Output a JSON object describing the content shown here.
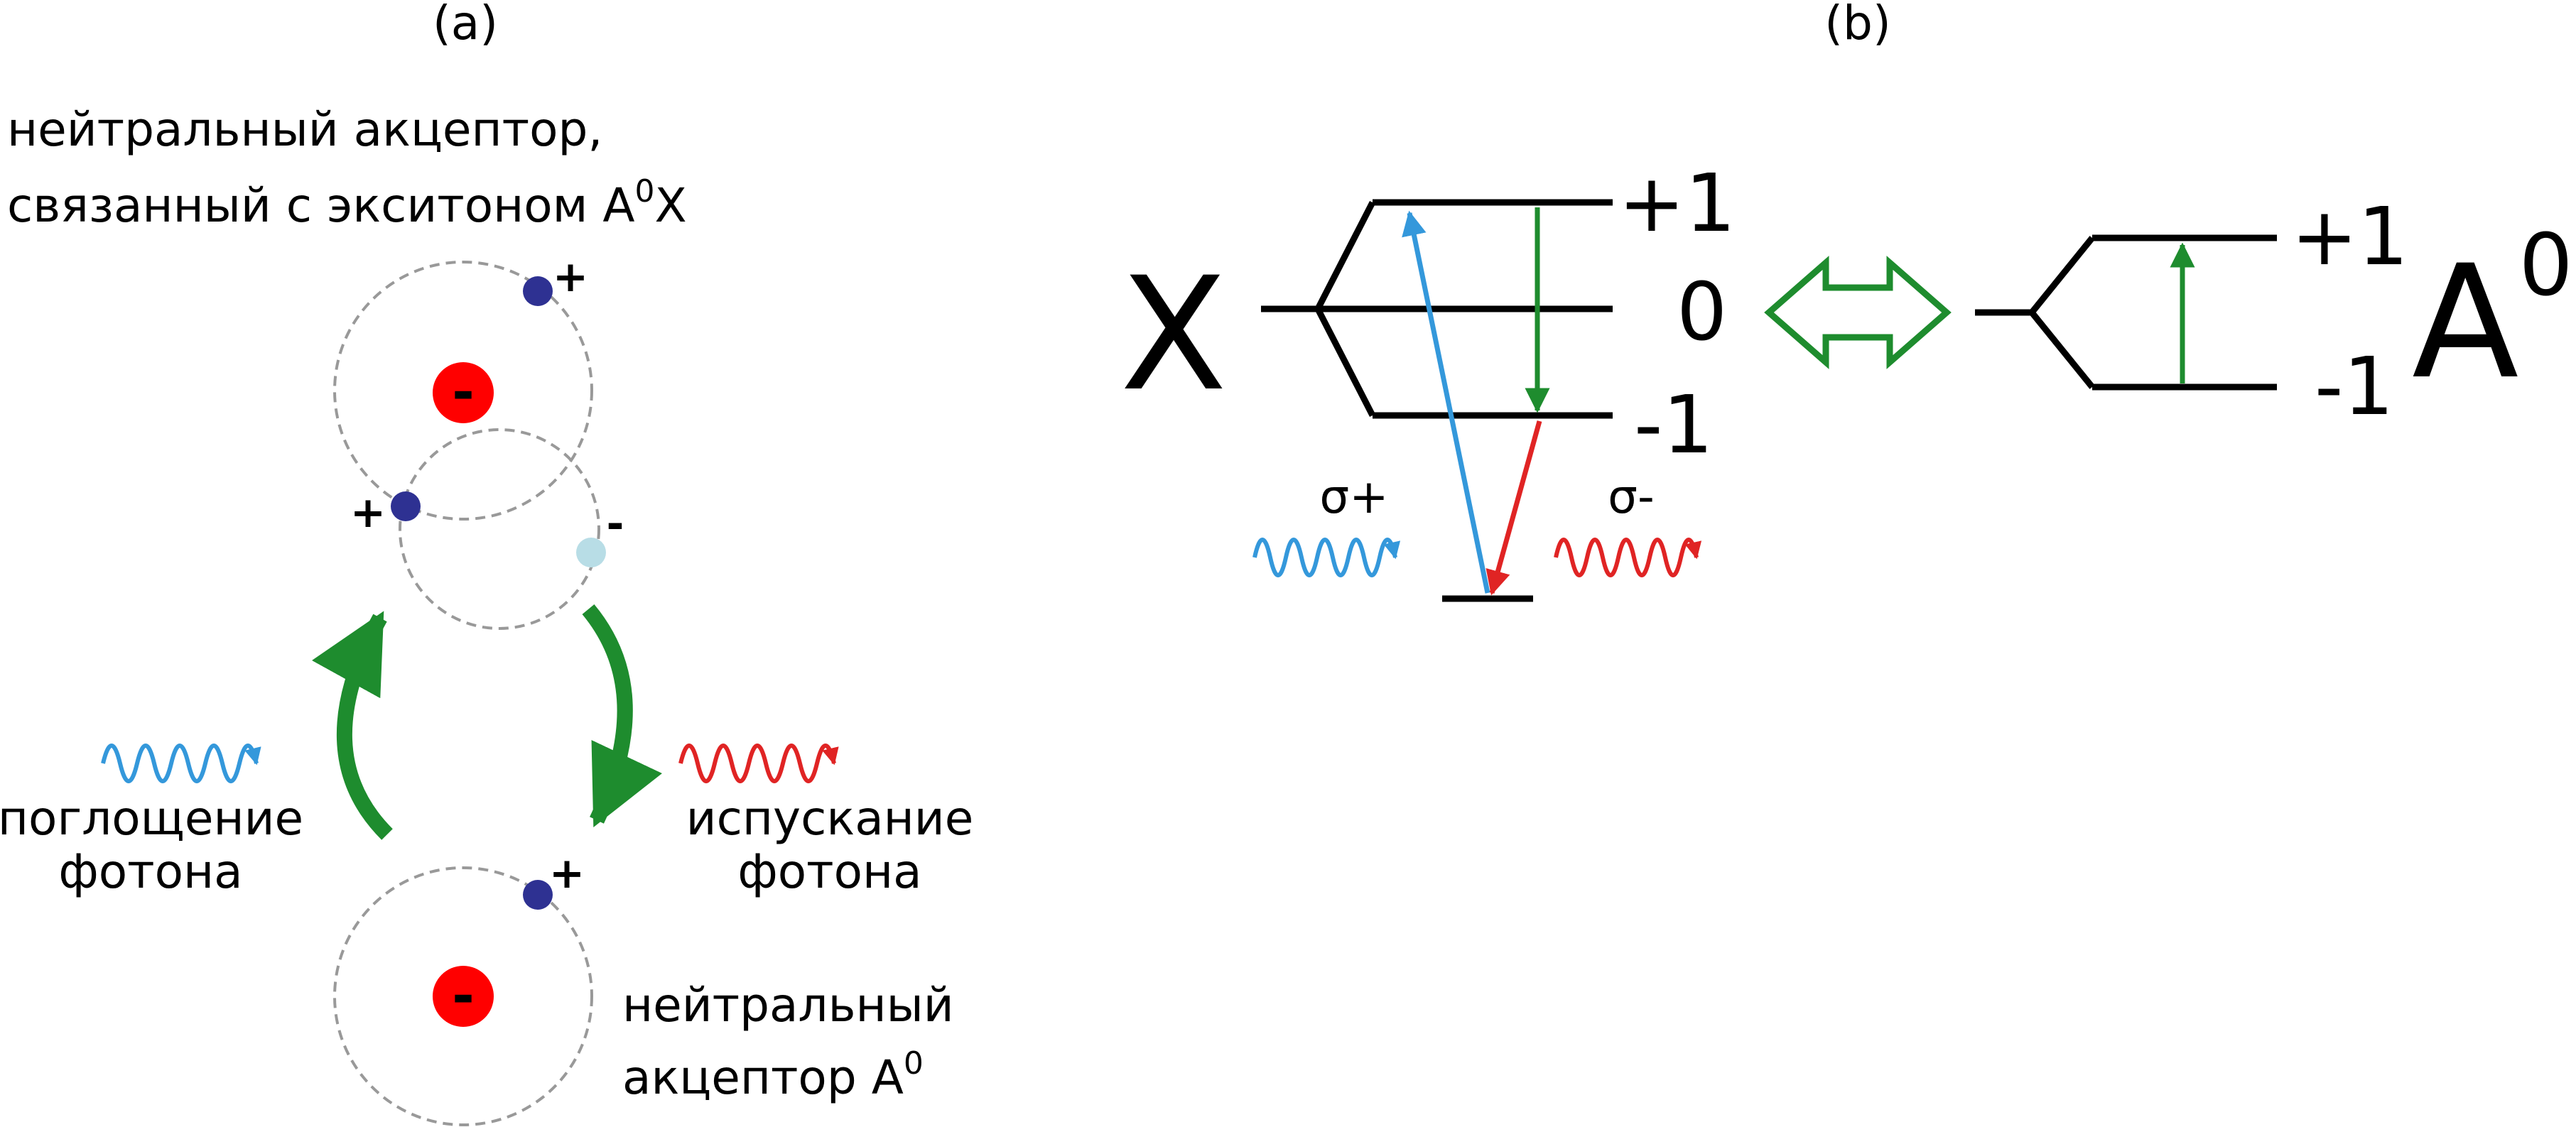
{
  "panel_a": {
    "label": "(a)",
    "bound_title_line1": "нейтральный акцептор,",
    "bound_title_line2": "связанный с экситоном A",
    "bound_title_sup": "0",
    "bound_title_tail": "X",
    "absorption_line1": "поглощение",
    "absorption_line2": "фотона",
    "emission_line1": "испускание",
    "emission_line2": "фотона",
    "neutral_line1": "нейтральный",
    "neutral_line2": "акцептор A",
    "neutral_sup": "0",
    "plus": "+",
    "minus": "-"
  },
  "panel_b": {
    "label": "(b)",
    "exciton_symbol": "X",
    "exciton_levels": [
      "+1",
      "0",
      "-1"
    ],
    "sigma_plus": "σ+",
    "sigma_minus": "σ-",
    "acceptor_symbol": "A",
    "acceptor_sup": "0",
    "acceptor_levels": [
      "+1",
      "-1"
    ]
  },
  "colors": {
    "green": "#1e8c2e",
    "blue": "#3498db",
    "red": "#e02424",
    "core_red": "#ff0000",
    "hole_dark": "#2e3192",
    "electron_light": "#b8dde6",
    "orbit_gray": "#999999"
  }
}
